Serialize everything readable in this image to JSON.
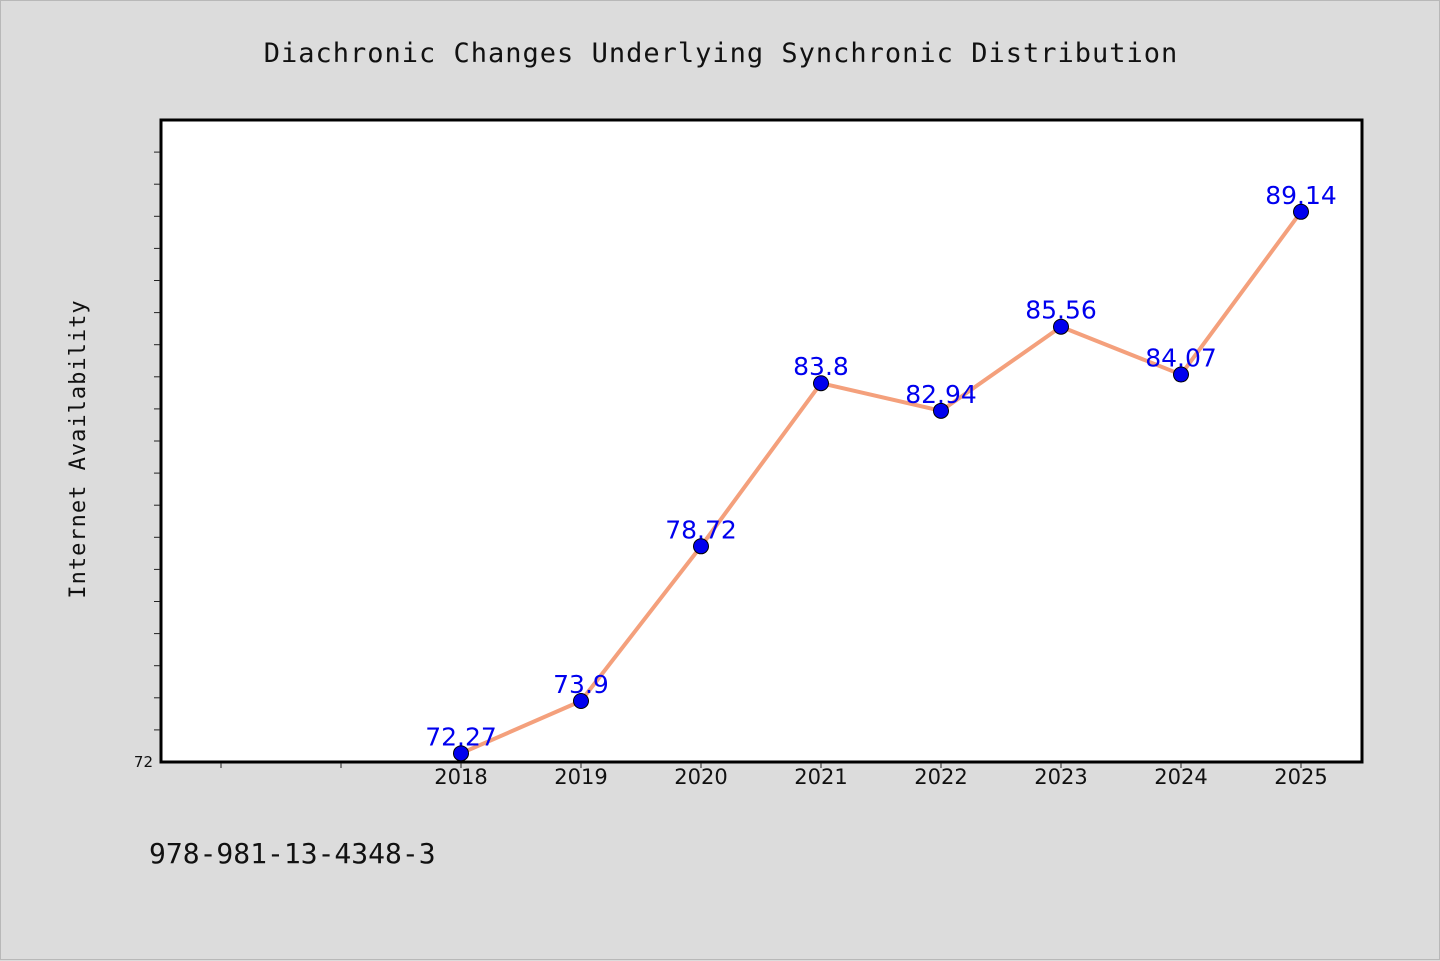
{
  "chart_data": {
    "type": "line",
    "title": "Diachronic Changes Underlying Synchronic Distribution",
    "xlabel": "",
    "ylabel": "Internet Availability",
    "categories": [
      "2018",
      "2019",
      "2020",
      "2021",
      "2022",
      "2023",
      "2024",
      "2025"
    ],
    "values": [
      72.27,
      73.9,
      78.72,
      83.8,
      82.94,
      85.56,
      84.07,
      89.14
    ],
    "data_labels": [
      "72.27",
      "73.9",
      "78.72",
      "83.8",
      "82.94",
      "85.56",
      "84.07",
      "89.14"
    ],
    "y_tick_label": "72",
    "ylim": [
      72,
      92
    ],
    "x_slots_before_first_category": 2,
    "grid": false,
    "line_color": "#f4a07c",
    "marker_color": "#0000ee",
    "label_color": "#0000ee"
  },
  "footnote": "978-981-13-4348-3"
}
